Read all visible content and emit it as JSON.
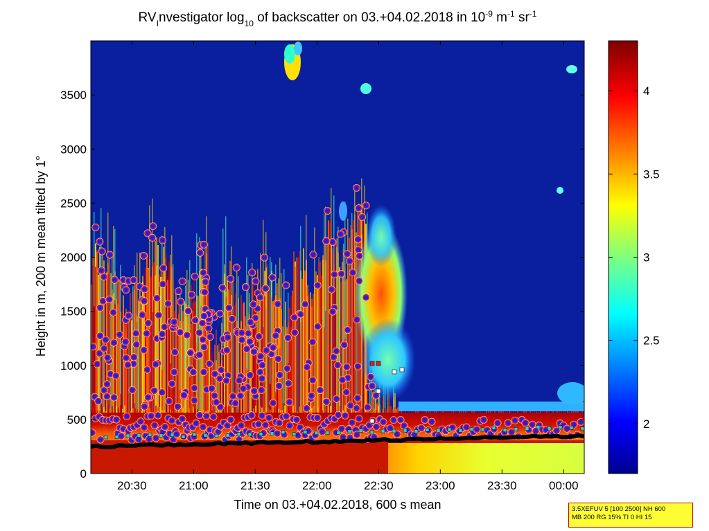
{
  "chart_data": {
    "type": "heatmap",
    "title": {
      "part1": "RV",
      "sub1": "I",
      "part2": "nvestigator log",
      "sub2": "10",
      "part3": " of backscatter on 03.+04.02.2018 in 10",
      "sup1": "-9",
      "part4": " m",
      "sup2": "-1",
      "part5": " sr",
      "sup3": "-1"
    },
    "xlabel": "Time on 03.+04.02.2018, 600 s mean",
    "ylabel": "Height in m, 200 m mean tilted by 1°",
    "x_range": [
      "20:10",
      "00:10"
    ],
    "y_range": [
      0,
      4000
    ],
    "x_ticks": [
      "20:30",
      "21:00",
      "21:30",
      "22:00",
      "22:30",
      "23:00",
      "23:30",
      "00:00"
    ],
    "y_ticks": [
      0,
      500,
      1000,
      1500,
      2000,
      2500,
      3000,
      3500
    ],
    "colorbar": {
      "range": [
        1.7,
        4.3
      ],
      "ticks": [
        2,
        2.5,
        3,
        3.5,
        4
      ],
      "colormap": "jet"
    }
  },
  "info_box": {
    "line1": "3.5XEFUV 5 [100 2500] NH 600",
    "line2": "MB 200 RG 15% TI 0 HI 15"
  },
  "colors": {
    "background_field": "#0a1f9e",
    "marker_fill": "#1c22e6",
    "marker_ring": "#e02020",
    "marker_halo": "#ffffff",
    "mlh_line": "#000000",
    "info_bg": "#ffff33",
    "info_border": "#cc0000"
  }
}
